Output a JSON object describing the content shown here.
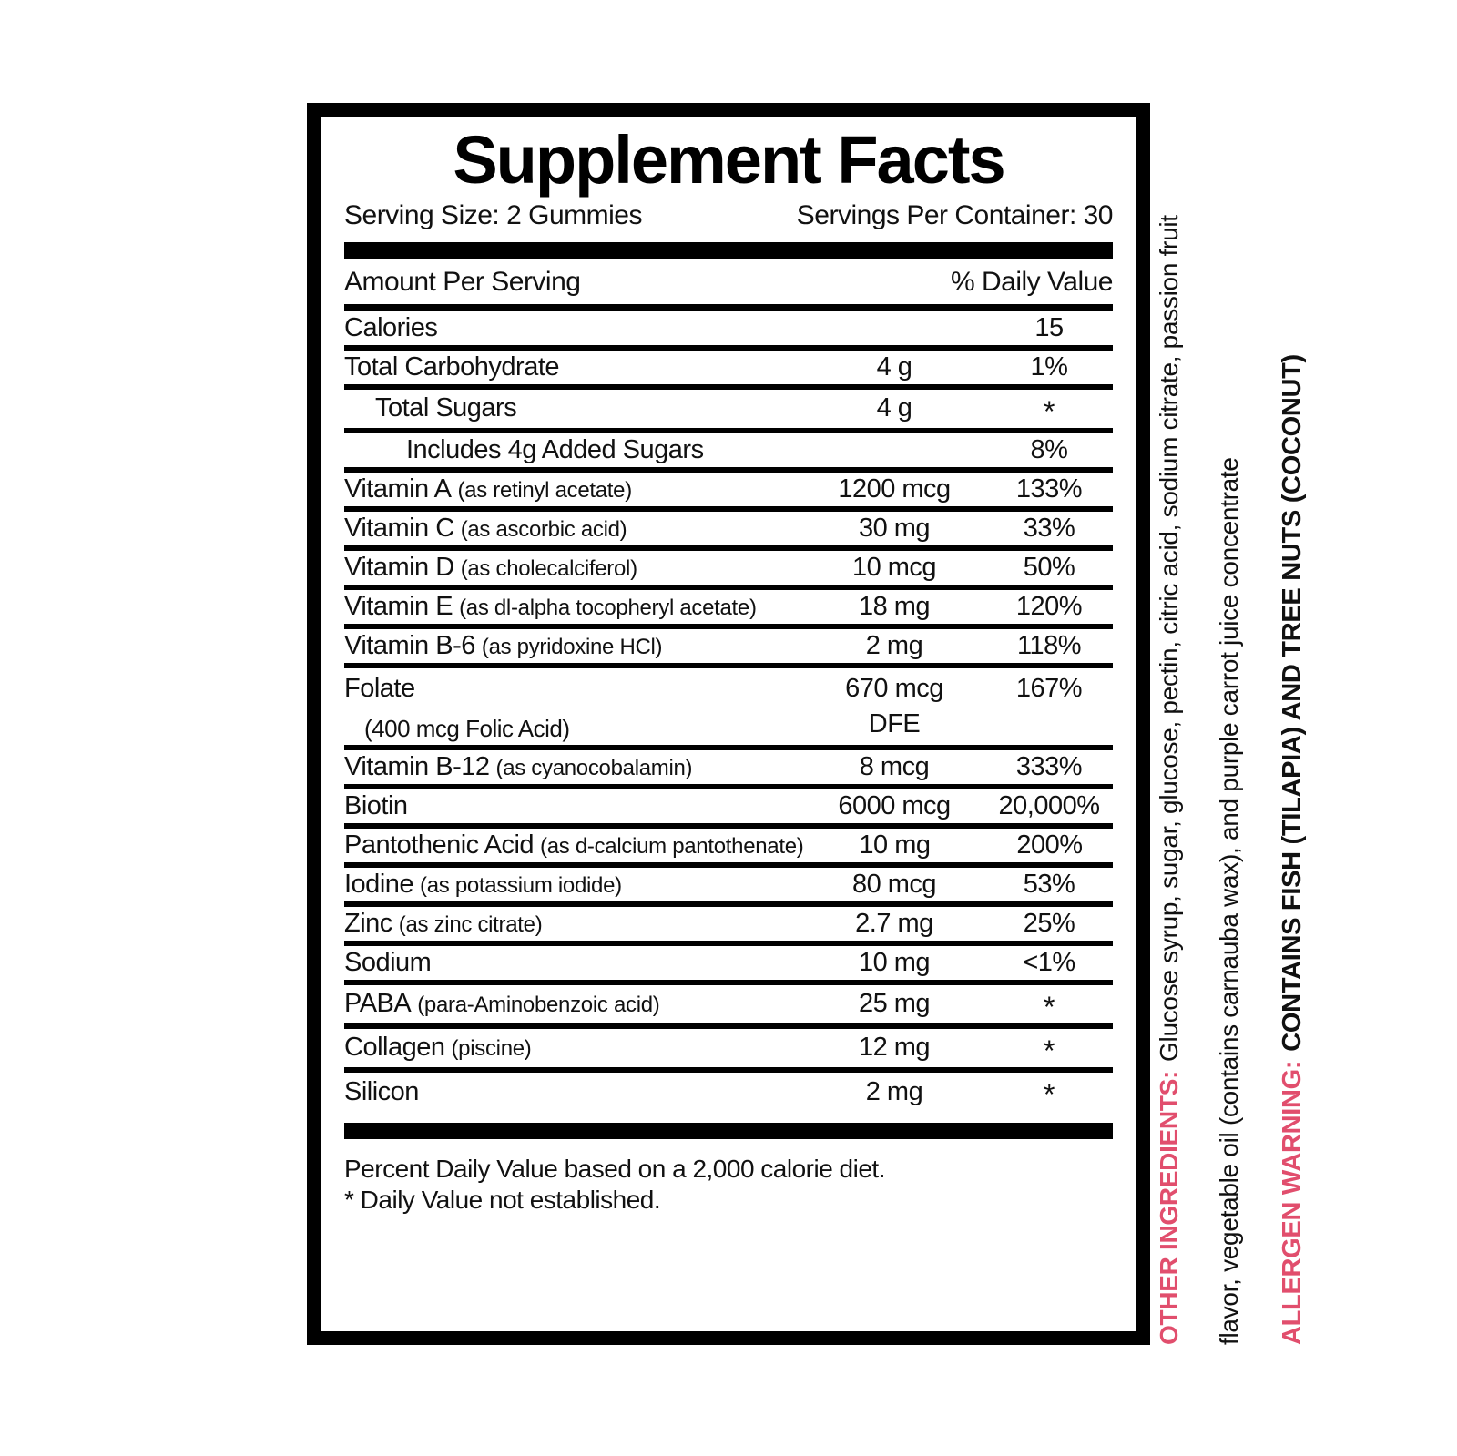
{
  "facts": {
    "title": "Supplement Facts",
    "serving_size": "Serving Size: 2 Gummies",
    "servings_per_container": "Servings Per Container: 30",
    "columns": {
      "amount_header": "Amount Per Serving",
      "dv_header": "% Daily Value"
    },
    "rows": [
      {
        "name": "Calories",
        "amount": "",
        "dv": "15"
      },
      {
        "name": "Total Carbohydrate",
        "amount": "4 g",
        "dv": "1%"
      },
      {
        "name": "Total Sugars",
        "indent": 1,
        "amount": "4 g",
        "dv": "*"
      },
      {
        "name": "Includes 4g Added Sugars",
        "indent": 2,
        "amount": "",
        "dv": "8%"
      },
      {
        "name": "Vitamin A",
        "note": "(as retinyl acetate)",
        "amount": "1200 mcg",
        "dv": "133%"
      },
      {
        "name": "Vitamin C",
        "note": "(as ascorbic acid)",
        "amount": "30 mg",
        "dv": "33%"
      },
      {
        "name": "Vitamin D",
        "note": "(as cholecalciferol)",
        "amount": "10 mcg",
        "dv": "50%"
      },
      {
        "name": "Vitamin E",
        "note": "(as dl-alpha tocopheryl acetate)",
        "amount": "18 mg",
        "dv": "120%"
      },
      {
        "name": "Vitamin B-6",
        "note": "(as pyridoxine HCl)",
        "amount": "2 mg",
        "dv": "118%"
      },
      {
        "name": "Folate",
        "name2": "(400 mcg Folic Acid)",
        "amount": "670 mcg",
        "amount2": "DFE",
        "dv": "167%"
      },
      {
        "name": "Vitamin B-12",
        "note": "(as cyanocobalamin)",
        "amount": "8 mcg",
        "dv": "333%"
      },
      {
        "name": "Biotin",
        "amount": "6000 mcg",
        "dv": "20,000%"
      },
      {
        "name": "Pantothenic Acid",
        "note": "(as d-calcium pantothenate)",
        "amount": "10 mg",
        "dv": "200%"
      },
      {
        "name": "Iodine",
        "note": "(as potassium iodide)",
        "amount": "80 mcg",
        "dv": "53%"
      },
      {
        "name": "Zinc",
        "note": "(as zinc citrate)",
        "amount": "2.7 mg",
        "dv": "25%"
      },
      {
        "name": "Sodium",
        "amount": "10 mg",
        "dv": "<1%"
      },
      {
        "name": "PABA",
        "note": "(para-Aminobenzoic acid)",
        "amount": "25 mg",
        "dv": "*"
      },
      {
        "name": "Collagen",
        "note": "(piscine)",
        "amount": "12 mg",
        "dv": "*"
      },
      {
        "name": "Silicon",
        "amount": "2 mg",
        "dv": "*"
      }
    ],
    "footnotes": {
      "line1": "Percent Daily Value based on a 2,000 calorie diet.",
      "line2": "* Daily Value not established."
    }
  },
  "side_text": {
    "accent_color": "#e14e6d",
    "other_ingredients": {
      "label": "OTHER INGREDIENTS:",
      "line1": "Glucose syrup, sugar, glucose, pectin, citric acid, sodium citrate, passion fruit",
      "line2": "flavor, vegetable oil (contains carnauba wax), and purple carrot juice concentrate"
    },
    "allergen_warning": {
      "label": "ALLERGEN WARNING:",
      "text": "CONTAINS FISH (TILAPIA) AND TREE NUTS (COCONUT)"
    }
  }
}
